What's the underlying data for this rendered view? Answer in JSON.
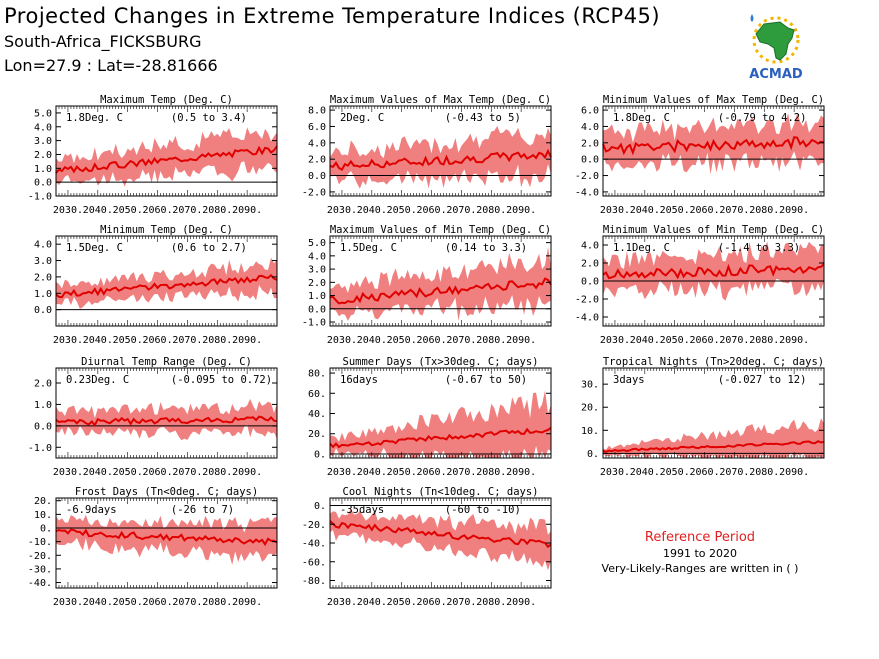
{
  "header": {
    "title": "Projected Changes in Extreme Temperature Indices (RCP45)",
    "location": "South-Africa_FICKSBURG",
    "coords": "Lon=27.9 : Lat=-28.81666"
  },
  "logo": {
    "text": "ACMAD",
    "icon": "africa-map-sun-logo"
  },
  "reference": {
    "title": "Reference Period",
    "years": "1991 to 2020",
    "note": "Very-Likely-Ranges are written in ( )"
  },
  "colors": {
    "band": "#f08080",
    "line": "#e00000",
    "zero": "#000000",
    "ref_title": "#e02020"
  },
  "chart_data": [
    {
      "id": "max-temp",
      "type": "area",
      "title": "Maximum Temp (Deg. C)",
      "mean_label": "1.8Deg. C",
      "range_label": "(0.5 to 3.4)",
      "x_ticks": [
        "2030.",
        "2040.",
        "2050.",
        "2060.",
        "2070.",
        "2080.",
        "2090."
      ],
      "y_ticks": [
        "5.0",
        "4.0",
        "3.0",
        "2.0",
        "1.0",
        "0.0",
        "-1.0"
      ],
      "ylim": [
        -1.0,
        5.5
      ],
      "xlim": [
        2026,
        2100
      ],
      "mean_start": 0.8,
      "mean_end": 2.4,
      "spread_lo": 0.8,
      "spread_hi": 1.5,
      "seed": 3
    },
    {
      "id": "max-of-max",
      "type": "area",
      "title": "Maximum Values of Max Temp (Deg. C)",
      "mean_label": "2Deg. C",
      "range_label": "(-0.43 to 5)",
      "x_ticks": [
        "2030.",
        "2040.",
        "2050.",
        "2060.",
        "2070.",
        "2080.",
        "2090."
      ],
      "y_ticks": [
        "8.0",
        "6.0",
        "4.0",
        "2.0",
        "0.0",
        "-2.0"
      ],
      "ylim": [
        -2.5,
        8.5
      ],
      "xlim": [
        2026,
        2100
      ],
      "mean_start": 1.1,
      "mean_end": 2.6,
      "spread_lo": 1.8,
      "spread_hi": 2.8,
      "seed": 7
    },
    {
      "id": "min-of-max",
      "type": "area",
      "title": "Minimum Values of Max Temp (Deg. C)",
      "mean_label": "1.8Deg. C",
      "range_label": "(-0.79 to 4.2)",
      "x_ticks": [
        "2030.",
        "2040.",
        "2050.",
        "2060.",
        "2070.",
        "2080.",
        "2090."
      ],
      "y_ticks": [
        "6.0",
        "4.0",
        "2.0",
        "0.0",
        "-2.0",
        "-4.0"
      ],
      "ylim": [
        -4.5,
        6.5
      ],
      "xlim": [
        2026,
        2100
      ],
      "mean_start": 1.3,
      "mean_end": 2.2,
      "spread_lo": 2.2,
      "spread_hi": 2.4,
      "seed": 11
    },
    {
      "id": "min-temp",
      "type": "area",
      "title": "Minimum Temp (Deg. C)",
      "mean_label": "1.5Deg. C",
      "range_label": "(0.6 to 2.7)",
      "x_ticks": [
        "2030.",
        "2040.",
        "2050.",
        "2060.",
        "2070.",
        "2080.",
        "2090."
      ],
      "y_ticks": [
        "4.0",
        "3.0",
        "2.0",
        "1.0",
        "0.0"
      ],
      "ylim": [
        -1.0,
        4.5
      ],
      "xlim": [
        2026,
        2100
      ],
      "mean_start": 0.9,
      "mean_end": 2.0,
      "spread_lo": 0.6,
      "spread_hi": 0.9,
      "seed": 13
    },
    {
      "id": "max-of-min",
      "type": "area",
      "title": "Maximum Values of Min Temp (Deg. C)",
      "mean_label": "1.5Deg. C",
      "range_label": "(0.14 to 3.3)",
      "x_ticks": [
        "2030.",
        "2040.",
        "2050.",
        "2060.",
        "2070.",
        "2080.",
        "2090."
      ],
      "y_ticks": [
        "5.0",
        "4.0",
        "3.0",
        "2.0",
        "1.0",
        "0.0",
        "-1.0"
      ],
      "ylim": [
        -1.3,
        5.5
      ],
      "xlim": [
        2026,
        2100
      ],
      "mean_start": 0.6,
      "mean_end": 2.0,
      "spread_lo": 1.1,
      "spread_hi": 1.8,
      "seed": 17
    },
    {
      "id": "min-of-min",
      "type": "area",
      "title": "Minimum Values of Min Temp (Deg. C)",
      "mean_label": "1.1Deg. C",
      "range_label": "(-1.4 to 3.3)",
      "x_ticks": [
        "2030.",
        "2040.",
        "2050.",
        "2060.",
        "2070.",
        "2080.",
        "2090."
      ],
      "y_ticks": [
        "4.0",
        "2.0",
        "0.0",
        "-2.0",
        "-4.0"
      ],
      "ylim": [
        -5.0,
        5.0
      ],
      "xlim": [
        2026,
        2100
      ],
      "mean_start": 0.6,
      "mean_end": 1.5,
      "spread_lo": 1.8,
      "spread_hi": 2.2,
      "seed": 19
    },
    {
      "id": "dtr",
      "type": "area",
      "title": "Diurnal Temp Range (Deg. C)",
      "mean_label": "0.23Deg. C",
      "range_label": "(-0.095 to 0.72)",
      "x_ticks": [
        "2030.",
        "2040.",
        "2050.",
        "2060.",
        "2070.",
        "2080.",
        "2090."
      ],
      "y_ticks": [
        "2.0",
        "1.0",
        "0.0",
        "-1.0"
      ],
      "ylim": [
        -1.5,
        2.7
      ],
      "xlim": [
        2026,
        2100
      ],
      "mean_start": 0.15,
      "mean_end": 0.35,
      "spread_lo": 0.5,
      "spread_hi": 0.7,
      "seed": 23
    },
    {
      "id": "summer-days",
      "type": "area",
      "title": "Summer Days (Tx>30deg. C; days)",
      "mean_label": "16days",
      "range_label": "(-0.67 to 50)",
      "x_ticks": [
        "2030.",
        "2040.",
        "2050.",
        "2060.",
        "2070.",
        "2080.",
        "2090."
      ],
      "y_ticks": [
        "80.",
        "60.",
        "40.",
        "20.",
        "0."
      ],
      "ylim": [
        -4,
        85
      ],
      "xlim": [
        2026,
        2100
      ],
      "mean_start": 8,
      "mean_end": 24,
      "spread_lo": 8,
      "spread_hi": 30,
      "seed": 29
    },
    {
      "id": "tropical-nights",
      "type": "area",
      "title": "Tropical Nights (Tn>20deg. C; days)",
      "mean_label": "3days",
      "range_label": "(-0.027 to 12)",
      "x_ticks": [
        "2030.",
        "2040.",
        "2050.",
        "2060.",
        "2070.",
        "2080.",
        "2090."
      ],
      "y_ticks": [
        "30.",
        "20.",
        "10.",
        "0."
      ],
      "ylim": [
        -2,
        37
      ],
      "xlim": [
        2026,
        2100
      ],
      "mean_start": 1,
      "mean_end": 5,
      "spread_lo": 1.5,
      "spread_hi": 9,
      "seed": 31
    },
    {
      "id": "frost-days",
      "type": "area",
      "title": "Frost Days (Tn<0deg. C; days)",
      "mean_label": "-6.9days",
      "range_label": "(-26 to 7)",
      "x_ticks": [
        "2030.",
        "2040.",
        "2050.",
        "2060.",
        "2070.",
        "2080.",
        "2090."
      ],
      "y_ticks": [
        "20.",
        "10.",
        "0.",
        "-10.",
        "-20.",
        "-30.",
        "-40."
      ],
      "ylim": [
        -44,
        22
      ],
      "xlim": [
        2026,
        2100
      ],
      "mean_start": -3,
      "mean_end": -10,
      "spread_lo": 8,
      "spread_hi": 14,
      "seed": 37
    },
    {
      "id": "cool-nights",
      "type": "area",
      "title": "Cool Nights (Tn<10deg. C; days)",
      "mean_label": "-35days",
      "range_label": "(-60 to -10)",
      "x_ticks": [
        "2030.",
        "2040.",
        "2050.",
        "2060.",
        "2070.",
        "2080.",
        "2090."
      ],
      "y_ticks": [
        "0.",
        "-20.",
        "-40.",
        "-60.",
        "-80."
      ],
      "ylim": [
        -88,
        8
      ],
      "xlim": [
        2026,
        2100
      ],
      "mean_start": -20,
      "mean_end": -42,
      "spread_lo": 12,
      "spread_hi": 20,
      "seed": 41
    }
  ]
}
